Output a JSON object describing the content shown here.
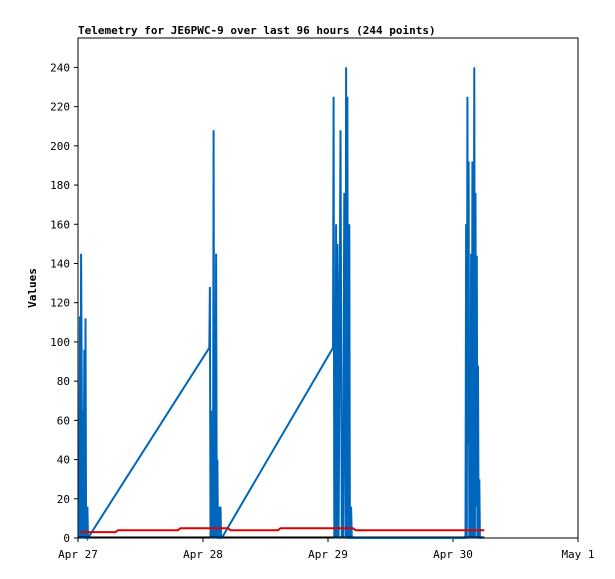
{
  "chart_data": {
    "type": "line",
    "title": "Telemetry for JE6PWC-9 over last 96 hours (244 points)",
    "xlabel": "",
    "ylabel": "Values",
    "ylim": [
      0,
      255
    ],
    "yticks": [
      0,
      20,
      40,
      60,
      80,
      100,
      120,
      140,
      160,
      180,
      200,
      220,
      240
    ],
    "xlim": [
      0,
      4
    ],
    "xticks": [
      {
        "value": 0,
        "label": "Apr 27"
      },
      {
        "value": 1,
        "label": "Apr 28"
      },
      {
        "value": 2,
        "label": "Apr 29"
      },
      {
        "value": 3,
        "label": "Apr 30"
      },
      {
        "value": 4,
        "label": "May 1"
      }
    ],
    "grid": false,
    "legend": "none",
    "series": [
      {
        "color": "#0066bb",
        "x": [
          0.01,
          0.015,
          0.02,
          0.025,
          0.03,
          0.035,
          0.04,
          0.045,
          0.05,
          0.055,
          0.06,
          0.065,
          0.07,
          0.075,
          0.08,
          1.05,
          1.055,
          1.06,
          1.065,
          1.07,
          1.075,
          1.08,
          1.085,
          1.09,
          1.095,
          1.1,
          1.105,
          1.11,
          1.115,
          1.12,
          1.125,
          1.13,
          1.135,
          1.14,
          1.145,
          1.15,
          2.04,
          2.045,
          2.05,
          2.055,
          2.06,
          2.065,
          2.07,
          2.075,
          2.08,
          2.085,
          2.1,
          2.11,
          2.115,
          2.12,
          2.13,
          2.14,
          2.145,
          2.15,
          2.155,
          2.16,
          2.165,
          2.17,
          2.175,
          2.18,
          2.185,
          2.19,
          2.195,
          2.2,
          2.205,
          2.21,
          3.1,
          3.105,
          3.11,
          3.115,
          3.12,
          3.125,
          3.13,
          3.135,
          3.14,
          3.145,
          3.15,
          3.155,
          3.16,
          3.165,
          3.17,
          3.175,
          3.18,
          3.185,
          3.19,
          3.195,
          3.2,
          3.205,
          3.21,
          3.215,
          3.22,
          3.225,
          3.23
        ],
        "y": [
          0,
          113,
          0,
          145,
          72,
          0,
          65,
          0,
          96,
          0,
          112,
          0,
          0,
          16,
          0,
          97,
          128,
          0,
          65,
          0,
          48,
          0,
          208,
          0,
          16,
          0,
          145,
          0,
          40,
          0,
          0,
          16,
          0,
          16,
          0,
          0,
          97,
          225,
          0,
          80,
          0,
          160,
          0,
          150,
          120,
          0,
          208,
          0,
          32,
          0,
          176,
          0,
          240,
          0,
          225,
          0,
          0,
          160,
          0,
          0,
          16,
          0,
          0,
          0,
          0,
          0,
          0,
          160,
          0,
          225,
          48,
          192,
          0,
          97,
          0,
          145,
          0,
          192,
          0,
          97,
          240,
          0,
          176,
          16,
          144,
          0,
          88,
          0,
          30,
          0,
          0,
          0,
          0
        ],
        "_note": ""
      },
      {
        "color": "#dd0000",
        "x": [
          0.02,
          0.3,
          0.32,
          0.8,
          0.82,
          1.2,
          1.22,
          1.6,
          1.62,
          2.0,
          2.02,
          2.2,
          2.22,
          2.6,
          2.62,
          3.0,
          3.02,
          3.25
        ],
        "y": [
          3,
          3,
          4,
          4,
          5,
          5,
          4,
          4,
          5,
          5,
          5,
          5,
          4,
          4,
          4,
          4,
          4,
          4
        ]
      },
      {
        "color": "#000000",
        "x": [
          0.0,
          3.25
        ],
        "y": [
          0.5,
          0.5
        ]
      }
    ]
  }
}
